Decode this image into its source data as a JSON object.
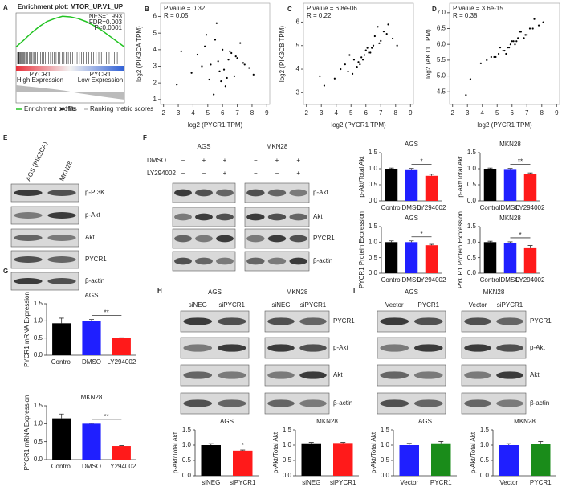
{
  "panel_labels": [
    "A",
    "B",
    "C",
    "D",
    "E",
    "F",
    "G",
    "H",
    "I"
  ],
  "chart_data": [
    {
      "type": "line",
      "title": "Enrichment plot: MTOR_UP.V1_UP",
      "annotations": [
        "NES=1.993",
        "FDR=0.003",
        "P<0.0001"
      ],
      "phenotypes": [
        {
          "name": "PYCR1",
          "label": "High Expression"
        },
        {
          "name": "PYCR1",
          "label": "Low Expression"
        }
      ],
      "x": [
        0,
        1,
        2,
        3,
        4,
        5,
        6,
        7,
        8,
        9,
        10,
        11,
        12,
        13,
        14
      ],
      "xlim": [
        0,
        14
      ],
      "ylim": [
        -0.05,
        0.6
      ],
      "series": [
        {
          "name": "Enrichment profile",
          "color": "#22c322",
          "values": [
            0,
            0.12,
            0.25,
            0.36,
            0.45,
            0.5,
            0.54,
            0.53,
            0.5,
            0.45,
            0.38,
            0.3,
            0.2,
            0.1,
            0
          ]
        }
      ],
      "other_legend": [
        "Hits",
        "Ranking metric scores"
      ]
    },
    {
      "type": "scatter",
      "annotations": [
        "P value = 0.32",
        "R = 0.05"
      ],
      "x_label": "log2 (PYCR1 TPM)",
      "y_label": "log2 (PIK3CA TPM)",
      "xlim": [
        1.8,
        9.2
      ],
      "xticks": [
        2,
        3,
        4,
        5,
        6,
        7,
        8,
        9
      ],
      "ylim": [
        0.7,
        6.8
      ],
      "yticks": [
        1,
        2,
        3,
        4,
        5,
        6
      ],
      "x": [
        5.2,
        6.1,
        4.8,
        7.0,
        5.9,
        6.5,
        3.9,
        7.4,
        5.5,
        6.8,
        4.3,
        6.2,
        5.7,
        7.8,
        6.0,
        5.1,
        6.9,
        4.6,
        7.2,
        5.8,
        6.4,
        3.2,
        8.1,
        5.4,
        6.6,
        4.9,
        7.5,
        6.3,
        5.6,
        2.9
      ],
      "y": [
        3.1,
        2.8,
        4.2,
        3.5,
        2.1,
        3.9,
        2.6,
        3.2,
        4.6,
        2.4,
        3.7,
        1.8,
        3.3,
        2.9,
        4.0,
        2.2,
        3.6,
        3.0,
        4.4,
        2.7,
        3.4,
        3.9,
        2.5,
        1.3,
        3.8,
        4.9,
        3.1,
        2.3,
        5.6,
        1.9
      ]
    },
    {
      "type": "scatter",
      "annotations": [
        "P value = 6.8e-06",
        "R = 0.22"
      ],
      "x_label": "log2 (PYCR1 TPM)",
      "y_label": "log2 (PIK3CB TPM)",
      "xlim": [
        1.8,
        9.2
      ],
      "xticks": [
        2,
        3,
        4,
        5,
        6,
        7,
        8,
        9
      ],
      "ylim": [
        2.5,
        6.8
      ],
      "yticks": [
        3,
        4,
        5,
        6
      ],
      "x": [
        5.2,
        6.1,
        4.8,
        7.0,
        5.9,
        6.5,
        3.9,
        7.4,
        5.5,
        6.8,
        4.3,
        6.2,
        5.7,
        7.8,
        6.0,
        5.1,
        6.9,
        4.6,
        7.2,
        5.8,
        6.4,
        3.2,
        8.1,
        5.4,
        6.6,
        4.9,
        7.5,
        6.3,
        5.6,
        2.9
      ],
      "y": [
        4.4,
        4.9,
        3.9,
        5.2,
        4.6,
        5.0,
        3.6,
        5.5,
        4.3,
        5.8,
        4.0,
        4.7,
        4.5,
        5.3,
        4.8,
        3.8,
        5.1,
        4.2,
        5.6,
        4.4,
        4.9,
        3.3,
        5.0,
        4.1,
        5.4,
        4.6,
        5.9,
        4.7,
        4.2,
        3.7
      ]
    },
    {
      "type": "scatter",
      "annotations": [
        "P value = 3.6e-15",
        "R = 0.38"
      ],
      "x_label": "log2 (PYCR1 TPM)",
      "y_label": "log2 (AKT1 TPM)",
      "xlim": [
        1.8,
        9.2
      ],
      "xticks": [
        2,
        3,
        4,
        5,
        6,
        7,
        8,
        9
      ],
      "ylim": [
        4.1,
        7.3
      ],
      "yticks": [
        4.5,
        {
          "value": 5,
          "label": "5.0"
        },
        5.5,
        {
          "value": 6,
          "label": "6.0"
        },
        6.5,
        {
          "value": 7,
          "label": "7.0"
        }
      ],
      "x": [
        5.2,
        6.1,
        4.8,
        7.0,
        5.9,
        6.5,
        3.9,
        7.4,
        5.5,
        6.8,
        4.3,
        6.2,
        5.7,
        7.8,
        6.0,
        5.1,
        6.9,
        4.6,
        7.2,
        5.8,
        6.4,
        3.2,
        8.1,
        5.4,
        6.6,
        4.9,
        7.5,
        6.3,
        5.6,
        2.9
      ],
      "y": [
        5.9,
        6.1,
        5.6,
        6.3,
        6.0,
        6.4,
        5.4,
        6.5,
        5.8,
        6.2,
        5.5,
        6.0,
        5.9,
        6.6,
        6.1,
        5.7,
        6.3,
        5.6,
        6.5,
        5.9,
        6.2,
        4.9,
        6.7,
        5.8,
        6.4,
        5.6,
        6.8,
        6.1,
        5.7,
        4.4
      ]
    },
    {
      "type": "bar",
      "title": "AGS",
      "y_label": "p-Akt/Total Akt",
      "categories": [
        "Control",
        "DMSO",
        "LY294002"
      ],
      "values": [
        1.0,
        0.98,
        0.78
      ],
      "errors": [
        0.02,
        0.03,
        0.05
      ],
      "colors": [
        "#000000",
        "#1f1fff",
        "#ff1a1a"
      ],
      "significance": "*",
      "ylim": [
        0,
        1.5
      ],
      "yticks": [
        {
          "value": 0,
          "label": "0.0"
        },
        0.5,
        {
          "value": 1,
          "label": "1.0"
        },
        1.5
      ]
    },
    {
      "type": "bar",
      "title": "MKN28",
      "y_label": "p-Akt/Total Akt",
      "categories": [
        "Control",
        "DMSO",
        "LY294002"
      ],
      "values": [
        1.0,
        0.99,
        0.85
      ],
      "errors": [
        0.02,
        0.02,
        0.02
      ],
      "colors": [
        "#000000",
        "#1f1fff",
        "#ff1a1a"
      ],
      "significance": "**",
      "ylim": [
        0,
        1.5
      ],
      "yticks": [
        {
          "value": 0,
          "label": "0.0"
        },
        0.5,
        {
          "value": 1,
          "label": "1.0"
        },
        1.5
      ]
    },
    {
      "type": "bar",
      "title": "AGS",
      "y_label": "PYCR1 Protein Expression",
      "categories": [
        "Control",
        "DMSO",
        "LY294002"
      ],
      "values": [
        1.0,
        1.0,
        0.9
      ],
      "errors": [
        0.04,
        0.04,
        0.03
      ],
      "colors": [
        "#000000",
        "#1f1fff",
        "#ff1a1a"
      ],
      "significance": "*",
      "ylim": [
        0,
        1.5
      ],
      "yticks": [
        {
          "value": 0,
          "label": "0.0"
        },
        0.5,
        {
          "value": 1,
          "label": "1.0"
        },
        1.5
      ]
    },
    {
      "type": "bar",
      "title": "MKN28",
      "y_label": "PYCR1 Protein Expression",
      "categories": [
        "Control",
        "DMSO",
        "LY294002"
      ],
      "values": [
        1.0,
        0.98,
        0.83
      ],
      "errors": [
        0.03,
        0.03,
        0.06
      ],
      "colors": [
        "#000000",
        "#1f1fff",
        "#ff1a1a"
      ],
      "significance": "*",
      "ylim": [
        0,
        1.5
      ],
      "yticks": [
        {
          "value": 0,
          "label": "0.0"
        },
        0.5,
        {
          "value": 1,
          "label": "1.0"
        },
        1.5
      ]
    },
    {
      "type": "bar",
      "title": "AGS",
      "y_label": "PYCR1 mRNA Expression",
      "categories": [
        "Control",
        "DMSO",
        "LY294002"
      ],
      "values": [
        0.93,
        1.0,
        0.5
      ],
      "errors": [
        0.15,
        0.04,
        0.01
      ],
      "colors": [
        "#000000",
        "#1f1fff",
        "#ff1a1a"
      ],
      "significance": "**",
      "ylim": [
        0,
        1.5
      ],
      "yticks": [
        {
          "value": 0,
          "label": "0.0"
        },
        0.5,
        {
          "value": 1,
          "label": "1.0"
        },
        1.5
      ]
    },
    {
      "type": "bar",
      "title": "MKN28",
      "y_label": "PYCR1 mRNA Expression",
      "categories": [
        "Control",
        "DMSO",
        "LY294002"
      ],
      "values": [
        1.15,
        1.0,
        0.38
      ],
      "errors": [
        0.12,
        0.01,
        0.01
      ],
      "colors": [
        "#000000",
        "#1f1fff",
        "#ff1a1a"
      ],
      "significance": "**",
      "ylim": [
        0,
        1.5
      ],
      "yticks": [
        {
          "value": 0,
          "label": "0.0"
        },
        0.5,
        {
          "value": 1,
          "label": "1.0"
        },
        1.5
      ]
    },
    {
      "type": "bar",
      "title": "AGS",
      "y_label": "p-Akt/Total Akt",
      "categories": [
        "siNEG",
        "siPYCR1"
      ],
      "values": [
        1.0,
        0.82
      ],
      "errors": [
        0.05,
        0.02
      ],
      "colors": [
        "#000000",
        "#ff1a1a"
      ],
      "significance": "*",
      "ylim": [
        0,
        1.5
      ],
      "yticks": [
        {
          "value": 0,
          "label": "0.0"
        },
        0.5,
        {
          "value": 1,
          "label": "1.0"
        },
        1.5
      ]
    },
    {
      "type": "bar",
      "title": "MKN28",
      "y_label": "p-Akt/Total Akt",
      "categories": [
        "siNEG",
        "siPYCR1"
      ],
      "values": [
        1.06,
        1.07
      ],
      "errors": [
        0.03,
        0.02
      ],
      "colors": [
        "#000000",
        "#ff1a1a"
      ],
      "ylim": [
        0,
        1.5
      ],
      "yticks": [
        {
          "value": 0,
          "label": "0.0"
        },
        0.5,
        {
          "value": 1,
          "label": "1.0"
        },
        1.5
      ]
    },
    {
      "type": "bar",
      "title": "AGS",
      "y_label": "p-Akt/Total Akt",
      "categories": [
        "Vector",
        "PYCR1"
      ],
      "values": [
        1.0,
        1.06
      ],
      "errors": [
        0.06,
        0.06
      ],
      "colors": [
        "#1f1fff",
        "#1a8c1a"
      ],
      "ylim": [
        0,
        1.5
      ],
      "yticks": [
        {
          "value": 0,
          "label": "0.0"
        },
        0.5,
        {
          "value": 1,
          "label": "1.0"
        },
        1.5
      ]
    },
    {
      "type": "bar",
      "title": "MKN28",
      "y_label": "p-Akt/Total Akt",
      "categories": [
        "Vector",
        "PYCR1"
      ],
      "values": [
        1.0,
        1.05
      ],
      "errors": [
        0.05,
        0.07
      ],
      "colors": [
        "#1f1fff",
        "#1a8c1a"
      ],
      "ylim": [
        0,
        1.5
      ],
      "yticks": [
        {
          "value": 0,
          "label": "0.0"
        },
        0.5,
        {
          "value": 1,
          "label": "1.0"
        },
        1.5
      ]
    }
  ],
  "blots": [
    {
      "lane_labels": [
        [
          "AGS (PIK3CA)",
          "MKN28"
        ]
      ],
      "rows": [
        "p-PI3K",
        "p-Akt",
        "Akt",
        "PYCR1",
        "β-actin"
      ]
    },
    {
      "groups": [
        "AGS",
        "MKN28"
      ],
      "treatments": [
        {
          "name": "DMSO",
          "marks": [
            "−",
            "+",
            "+"
          ]
        },
        {
          "name": "LY294002",
          "marks": [
            "−",
            "−",
            "+"
          ]
        }
      ],
      "rows": [
        "p-Akt",
        "Akt",
        "PYCR1",
        "β-actin"
      ]
    },
    {
      "groups": [
        "AGS",
        "MKN28"
      ],
      "lane_labels": [
        [
          "siNEG",
          "siPYCR1"
        ],
        [
          "siNEG",
          "siPYCR1"
        ]
      ],
      "rows": [
        "PYCR1",
        "p-Akt",
        "Akt",
        "β-actin"
      ]
    },
    {
      "groups": [
        "AGS",
        "MKN28"
      ],
      "lane_labels": [
        [
          "Vector",
          "PYCR1"
        ],
        [
          "Vector",
          "siPYCR1"
        ]
      ],
      "rows": [
        "PYCR1",
        "p-Akt",
        "Akt",
        "β-actin"
      ]
    }
  ]
}
